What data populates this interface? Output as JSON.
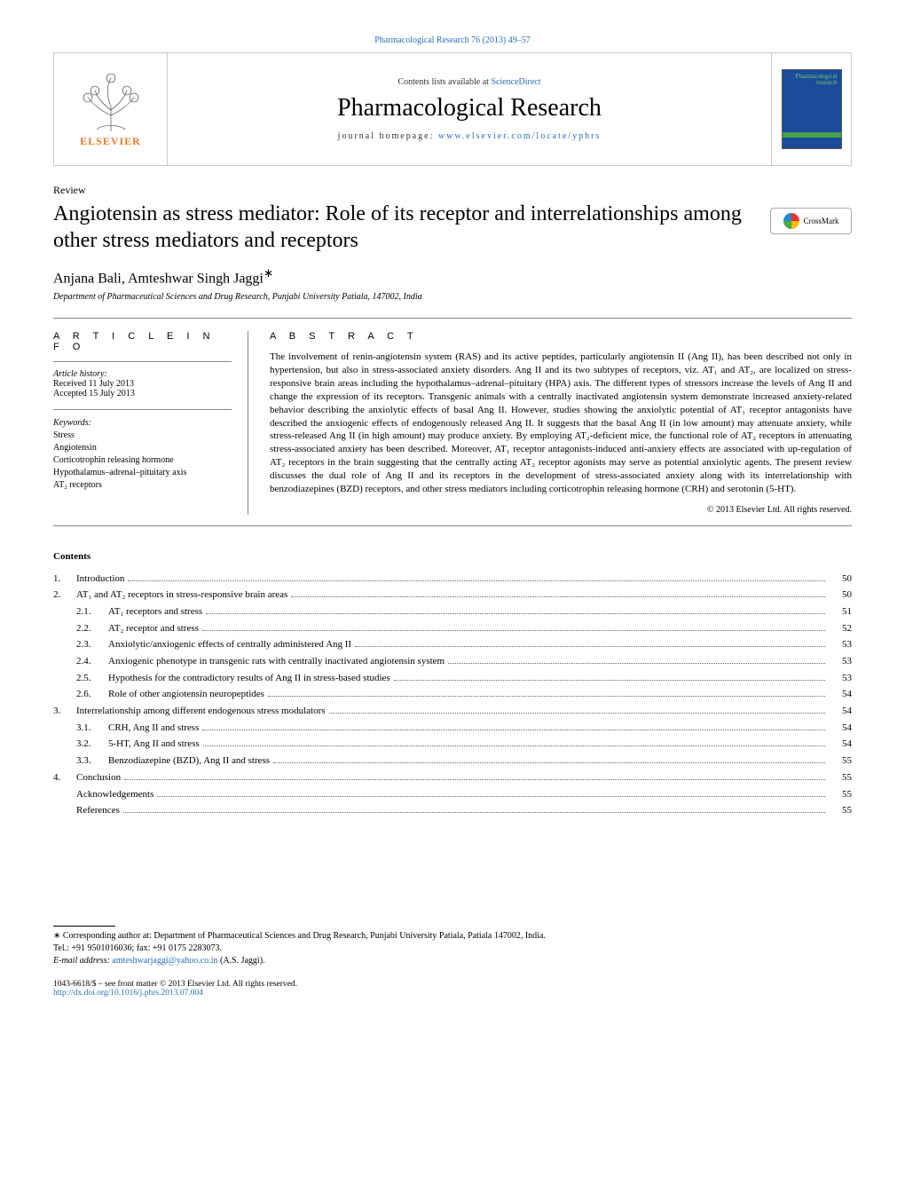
{
  "top_citation": "Pharmacological Research 76 (2013) 49–57",
  "header": {
    "contents_line_prefix": "Contents lists available at ",
    "science_direct": "ScienceDirect",
    "journal_name": "Pharmacological Research",
    "homepage_prefix": "journal homepage: ",
    "homepage_url": "www.elsevier.com/locate/yphrs",
    "elsevier_label": "ELSEVIER",
    "cover_tag_line1": "Pharmacological",
    "cover_tag_line2": "research"
  },
  "article": {
    "type_label": "Review",
    "title": "Angiotensin as stress mediator: Role of its receptor and interrelationships among other stress mediators and receptors",
    "crossmark_label": "CrossMark",
    "authors": "Anjana Bali, Amteshwar Singh Jaggi",
    "corr_mark": "∗",
    "affiliation": "Department of Pharmaceutical Sciences and Drug Research, Punjabi University Patiala, 147002, India"
  },
  "info": {
    "heading": "A R T I C L E   I N F O",
    "history_label": "Article history:",
    "received": "Received 11 July 2013",
    "accepted": "Accepted 15 July 2013",
    "keywords_label": "Keywords:",
    "keywords": [
      "Stress",
      "Angiotensin",
      "Corticotrophin releasing hormone",
      "Hypothalamus–adrenal–pituitary axis",
      "AT₂ receptors"
    ]
  },
  "abstract": {
    "heading": "A B S T R A C T",
    "text": "The involvement of renin-angiotensin system (RAS) and its active peptides, particularly angiotensin II (Ang II), has been described not only in hypertension, but also in stress-associated anxiety disorders. Ang II and its two subtypes of receptors, viz. AT₁ and AT₂, are localized on stress-responsive brain areas including the hypothalamus–adrenal–pituitary (HPA) axis. The different types of stressors increase the levels of Ang II and change the expression of its receptors. Transgenic animals with a centrally inactivated angiotensin system demonstrate increased anxiety-related behavior describing the anxiolytic effects of basal Ang II. However, studies showing the anxiolytic potential of AT₁ receptor antagonists have described the anxiogenic effects of endogenously released Ang II. It suggests that the basal Ang II (in low amount) may attenuate anxiety, while stress-released Ang II (in high amount) may produce anxiety. By employing AT₂-deficient mice, the functional role of AT₂ receptors in attenuating stress-associated anxiety has been described. Moreover, AT₁ receptor antagonists-induced anti-anxiety effects are associated with up-regulation of AT₂ receptors in the brain suggesting that the centrally acting AT₂ receptor agonists may serve as potential anxiolytic agents. The present review discusses the dual role of Ang II and its receptors in the development of stress-associated anxiety along with its interrelationship with benzodiazepines (BZD) receptors, and other stress mediators including corticotrophin releasing hormone (CRH) and serotonin (5-HT).",
    "copyright": "© 2013 Elsevier Ltd. All rights reserved."
  },
  "contents": {
    "heading": "Contents",
    "items": [
      {
        "num": "1.",
        "sub": "",
        "label": "Introduction",
        "page": "50"
      },
      {
        "num": "2.",
        "sub": "",
        "label": "AT₁ and AT₂ receptors in stress-responsive brain areas",
        "page": "50"
      },
      {
        "num": "",
        "sub": "2.1.",
        "label": "AT₁ receptors and stress",
        "page": "51"
      },
      {
        "num": "",
        "sub": "2.2.",
        "label": "AT₂ receptor and stress",
        "page": "52"
      },
      {
        "num": "",
        "sub": "2.3.",
        "label": "Anxiolytic/anxiogenic effects of centrally administered Ang II",
        "page": "53"
      },
      {
        "num": "",
        "sub": "2.4.",
        "label": "Anxiogenic phenotype in transgenic rats with centrally inactivated angiotensin system",
        "page": "53"
      },
      {
        "num": "",
        "sub": "2.5.",
        "label": "Hypothesis for the contradictory results of Ang II in stress-based studies",
        "page": "53"
      },
      {
        "num": "",
        "sub": "2.6.",
        "label": "Role of other angiotensin neuropeptides",
        "page": "54"
      },
      {
        "num": "3.",
        "sub": "",
        "label": "Interrelationship among different endogenous stress modulators",
        "page": "54"
      },
      {
        "num": "",
        "sub": "3.1.",
        "label": "CRH, Ang II and stress",
        "page": "54"
      },
      {
        "num": "",
        "sub": "3.2.",
        "label": "5-HT, Ang II and stress",
        "page": "54"
      },
      {
        "num": "",
        "sub": "3.3.",
        "label": "Benzodiazepine (BZD), Ang II and stress",
        "page": "55"
      },
      {
        "num": "4.",
        "sub": "",
        "label": "Conclusion",
        "page": "55"
      },
      {
        "num": "",
        "sub": "",
        "label": "Acknowledgements",
        "page": "55",
        "indent": 1
      },
      {
        "num": "",
        "sub": "",
        "label": "References",
        "page": "55",
        "indent": 1
      }
    ]
  },
  "footer": {
    "corr_line": "∗ Corresponding author at: Department of Pharmaceutical Sciences and Drug Research, Punjabi University Patiala, Patiala 147002, India.",
    "tel_line": "Tel.: +91 9501016036; fax: +91 0175 2283073.",
    "email_label": "E-mail address: ",
    "email": "amteshwarjaggi@yahoo.co.in",
    "email_suffix": " (A.S. Jaggi).",
    "issn_line": "1043-6618/$ – see front matter © 2013 Elsevier Ltd. All rights reserved.",
    "doi": "http://dx.doi.org/10.1016/j.phrs.2013.07.004"
  }
}
